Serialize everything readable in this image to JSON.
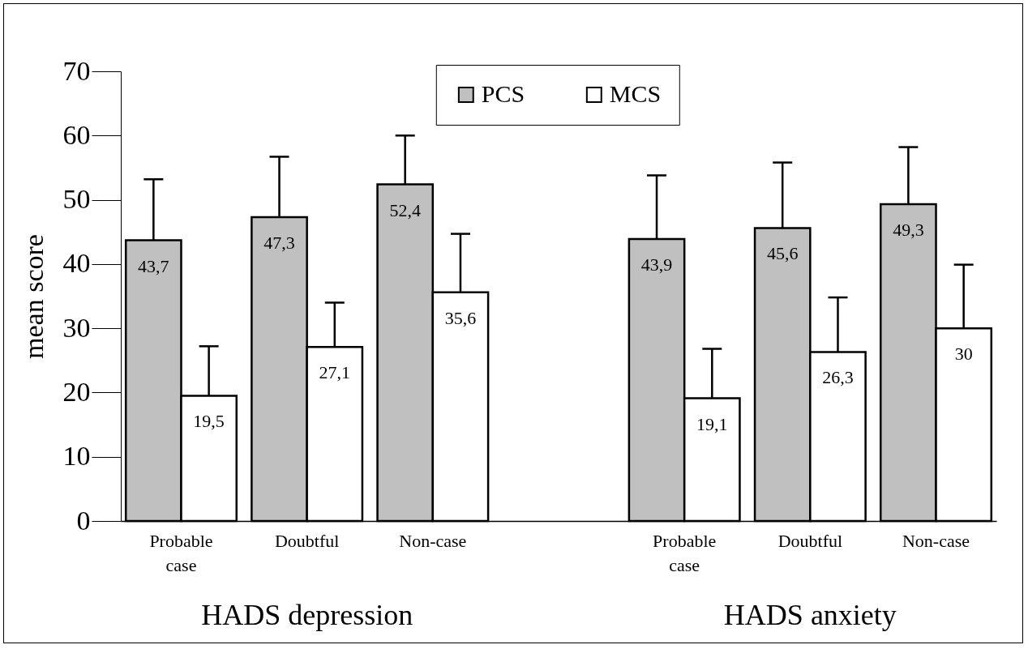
{
  "chart_data": {
    "type": "bar",
    "ylabel": "mean score",
    "categories": [
      "Probable case",
      "Doubtful",
      "Non-case",
      null,
      "Probable case",
      "Doubtful",
      "Non-case"
    ],
    "series": [
      {
        "name": "PCS",
        "color": "#c0c0c0",
        "values": [
          43.7,
          47.3,
          52.4,
          null,
          43.9,
          45.6,
          49.3
        ],
        "value_labels": [
          "43,7",
          "47,3",
          "52,4",
          null,
          "43,9",
          "45,6",
          "49,3"
        ],
        "errors": [
          [
            43.7,
            53.2
          ],
          [
            47.3,
            56.7
          ],
          [
            52.4,
            60.0
          ],
          null,
          [
            43.9,
            53.8
          ],
          [
            45.6,
            55.8
          ],
          [
            49.3,
            58.2
          ]
        ]
      },
      {
        "name": "MCS",
        "color": "#ffffff",
        "values": [
          19.5,
          27.1,
          35.6,
          null,
          19.1,
          26.3,
          30
        ],
        "value_labels": [
          "19,5",
          "27,1",
          "35,6",
          null,
          "19,1",
          "26,3",
          "30"
        ],
        "errors": [
          [
            19.5,
            27.2
          ],
          [
            27.1,
            34.0
          ],
          [
            35.6,
            44.7
          ],
          null,
          [
            19.1,
            26.8
          ],
          [
            26.3,
            34.8
          ],
          [
            30,
            39.9
          ]
        ]
      }
    ],
    "ylim": [
      0,
      70
    ],
    "yticks": [
      0,
      10,
      20,
      30,
      40,
      50,
      60,
      70
    ],
    "grid": false,
    "legend": "top",
    "annotations": [
      "HADS depression",
      "HADS anxiety"
    ]
  }
}
